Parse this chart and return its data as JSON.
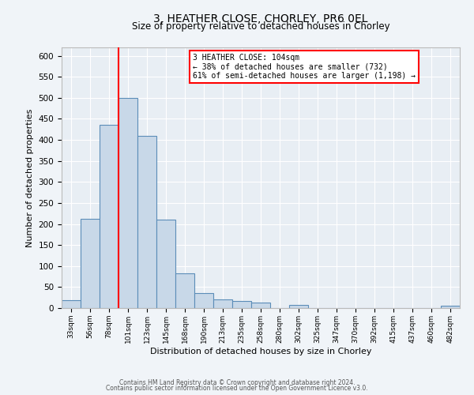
{
  "title": "3, HEATHER CLOSE, CHORLEY, PR6 0EL",
  "subtitle": "Size of property relative to detached houses in Chorley",
  "xlabel": "Distribution of detached houses by size in Chorley",
  "ylabel": "Number of detached properties",
  "bin_labels": [
    "33sqm",
    "56sqm",
    "78sqm",
    "101sqm",
    "123sqm",
    "145sqm",
    "168sqm",
    "190sqm",
    "213sqm",
    "235sqm",
    "258sqm",
    "280sqm",
    "302sqm",
    "325sqm",
    "347sqm",
    "370sqm",
    "392sqm",
    "415sqm",
    "437sqm",
    "460sqm",
    "482sqm"
  ],
  "bar_values": [
    18,
    212,
    435,
    500,
    410,
    210,
    83,
    35,
    20,
    17,
    13,
    0,
    7,
    0,
    0,
    0,
    0,
    0,
    0,
    0,
    5
  ],
  "bar_color": "#c8d8e8",
  "bar_edge_color": "#5b8db8",
  "vline_x": 3,
  "vline_color": "red",
  "annotation_line1": "3 HEATHER CLOSE: 104sqm",
  "annotation_line2": "← 38% of detached houses are smaller (732)",
  "annotation_line3": "61% of semi-detached houses are larger (1,198) →",
  "annotation_box_color": "white",
  "annotation_box_edge_color": "red",
  "ylim": [
    0,
    620
  ],
  "yticks": [
    0,
    50,
    100,
    150,
    200,
    250,
    300,
    350,
    400,
    450,
    500,
    550,
    600
  ],
  "footer1": "Contains HM Land Registry data © Crown copyright and database right 2024.",
  "footer2": "Contains public sector information licensed under the Open Government Licence v3.0.",
  "bg_color": "#f0f4f8",
  "plot_bg_color": "#e8eef4"
}
